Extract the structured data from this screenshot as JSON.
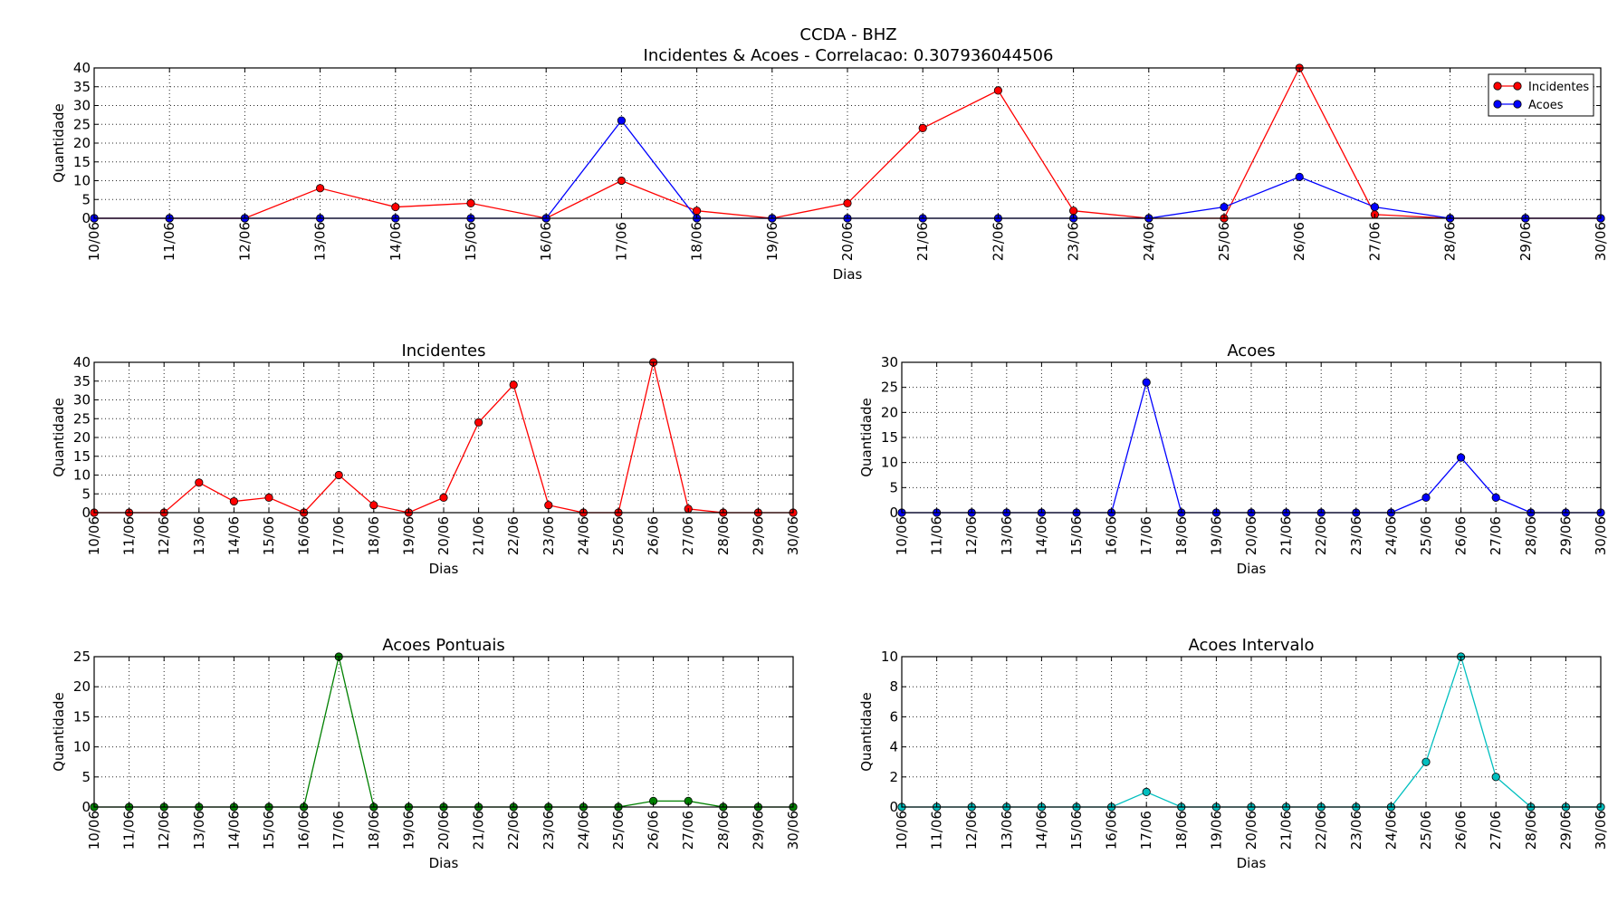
{
  "figure": {
    "suptitle_line1": "CCDA - BHZ",
    "suptitle_line2": "Incidentes & Acoes - Correlacao: 0.307936044506"
  },
  "chart_data": [
    {
      "id": "combined",
      "type": "line",
      "title": "",
      "xlabel": "Dias",
      "ylabel": "Quantidade",
      "categories": [
        "10/06",
        "11/06",
        "12/06",
        "13/06",
        "14/06",
        "15/06",
        "16/06",
        "17/06",
        "18/06",
        "19/06",
        "20/06",
        "21/06",
        "22/06",
        "23/06",
        "24/06",
        "25/06",
        "26/06",
        "27/06",
        "28/06",
        "29/06",
        "30/06"
      ],
      "ylim": [
        0,
        40
      ],
      "yticks": [
        0,
        5,
        10,
        15,
        20,
        25,
        30,
        35,
        40
      ],
      "grid": true,
      "legend": "top-right",
      "series": [
        {
          "name": "Incidentes",
          "color": "#ff0000",
          "values": [
            0,
            0,
            0,
            8,
            3,
            4,
            0,
            10,
            2,
            0,
            4,
            24,
            34,
            2,
            0,
            0,
            40,
            1,
            0,
            0,
            0
          ]
        },
        {
          "name": "Acoes",
          "color": "#0000ff",
          "values": [
            0,
            0,
            0,
            0,
            0,
            0,
            0,
            26,
            0,
            0,
            0,
            0,
            0,
            0,
            0,
            3,
            11,
            3,
            0,
            0,
            0
          ]
        }
      ]
    },
    {
      "id": "incidentes",
      "type": "line",
      "title": "Incidentes",
      "xlabel": "Dias",
      "ylabel": "Quantidade",
      "categories": [
        "10/06",
        "11/06",
        "12/06",
        "13/06",
        "14/06",
        "15/06",
        "16/06",
        "17/06",
        "18/06",
        "19/06",
        "20/06",
        "21/06",
        "22/06",
        "23/06",
        "24/06",
        "25/06",
        "26/06",
        "27/06",
        "28/06",
        "29/06",
        "30/06"
      ],
      "ylim": [
        0,
        40
      ],
      "yticks": [
        0,
        5,
        10,
        15,
        20,
        25,
        30,
        35,
        40
      ],
      "grid": true,
      "series": [
        {
          "color": "#ff0000",
          "values": [
            0,
            0,
            0,
            8,
            3,
            4,
            0,
            10,
            2,
            0,
            4,
            24,
            34,
            2,
            0,
            0,
            40,
            1,
            0,
            0,
            0
          ]
        }
      ]
    },
    {
      "id": "acoes",
      "type": "line",
      "title": "Acoes",
      "xlabel": "Dias",
      "ylabel": "Quantidade",
      "categories": [
        "10/06",
        "11/06",
        "12/06",
        "13/06",
        "14/06",
        "15/06",
        "16/06",
        "17/06",
        "18/06",
        "19/06",
        "20/06",
        "21/06",
        "22/06",
        "23/06",
        "24/06",
        "25/06",
        "26/06",
        "27/06",
        "28/06",
        "29/06",
        "30/06"
      ],
      "ylim": [
        0,
        30
      ],
      "yticks": [
        0,
        5,
        10,
        15,
        20,
        25,
        30
      ],
      "grid": true,
      "series": [
        {
          "color": "#0000ff",
          "values": [
            0,
            0,
            0,
            0,
            0,
            0,
            0,
            26,
            0,
            0,
            0,
            0,
            0,
            0,
            0,
            3,
            11,
            3,
            0,
            0,
            0
          ]
        }
      ]
    },
    {
      "id": "acoes-pontuais",
      "type": "line",
      "title": "Acoes Pontuais",
      "xlabel": "Dias",
      "ylabel": "Quantidade",
      "categories": [
        "10/06",
        "11/06",
        "12/06",
        "13/06",
        "14/06",
        "15/06",
        "16/06",
        "17/06",
        "18/06",
        "19/06",
        "20/06",
        "21/06",
        "22/06",
        "23/06",
        "24/06",
        "25/06",
        "26/06",
        "27/06",
        "28/06",
        "29/06",
        "30/06"
      ],
      "ylim": [
        0,
        25
      ],
      "yticks": [
        0,
        5,
        10,
        15,
        20,
        25
      ],
      "grid": true,
      "series": [
        {
          "color": "#008000",
          "values": [
            0,
            0,
            0,
            0,
            0,
            0,
            0,
            25,
            0,
            0,
            0,
            0,
            0,
            0,
            0,
            0,
            1,
            1,
            0,
            0,
            0
          ]
        }
      ]
    },
    {
      "id": "acoes-intervalo",
      "type": "line",
      "title": "Acoes Intervalo",
      "xlabel": "Dias",
      "ylabel": "Quantidade",
      "categories": [
        "10/06",
        "11/06",
        "12/06",
        "13/06",
        "14/06",
        "15/06",
        "16/06",
        "17/06",
        "18/06",
        "19/06",
        "20/06",
        "21/06",
        "22/06",
        "23/06",
        "24/06",
        "25/06",
        "26/06",
        "27/06",
        "28/06",
        "29/06",
        "30/06"
      ],
      "ylim": [
        0,
        10
      ],
      "yticks": [
        0,
        2,
        4,
        6,
        8,
        10
      ],
      "grid": true,
      "series": [
        {
          "color": "#00bfbf",
          "values": [
            0,
            0,
            0,
            0,
            0,
            0,
            0,
            1,
            0,
            0,
            0,
            0,
            0,
            0,
            0,
            3,
            10,
            2,
            0,
            0,
            0
          ]
        }
      ]
    }
  ]
}
